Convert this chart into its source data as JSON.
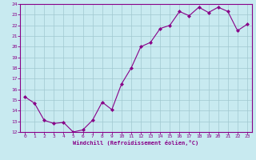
{
  "x": [
    0,
    1,
    2,
    3,
    4,
    5,
    6,
    7,
    8,
    9,
    10,
    11,
    12,
    13,
    14,
    15,
    16,
    17,
    18,
    19,
    20,
    21,
    22,
    23
  ],
  "y": [
    15.3,
    14.7,
    13.1,
    12.8,
    12.9,
    12.0,
    12.2,
    13.1,
    14.8,
    14.1,
    16.5,
    18.0,
    20.0,
    20.4,
    21.7,
    22.0,
    23.3,
    22.9,
    23.7,
    23.2,
    23.7,
    23.3,
    21.5,
    22.1
  ],
  "xlabel": "Windchill (Refroidissement éolien,°C)",
  "ylim": [
    12,
    24
  ],
  "xlim_min": -0.5,
  "xlim_max": 23.5,
  "yticks": [
    12,
    13,
    14,
    15,
    16,
    17,
    18,
    19,
    20,
    21,
    22,
    23,
    24
  ],
  "xticks": [
    0,
    1,
    2,
    3,
    4,
    5,
    6,
    7,
    8,
    9,
    10,
    11,
    12,
    13,
    14,
    15,
    16,
    17,
    18,
    19,
    20,
    21,
    22,
    23
  ],
  "line_color": "#880088",
  "marker_color": "#880088",
  "bg_color": "#c8eaf0",
  "grid_color": "#a0c8d0",
  "tick_label_color": "#880088",
  "axis_label_color": "#880088"
}
